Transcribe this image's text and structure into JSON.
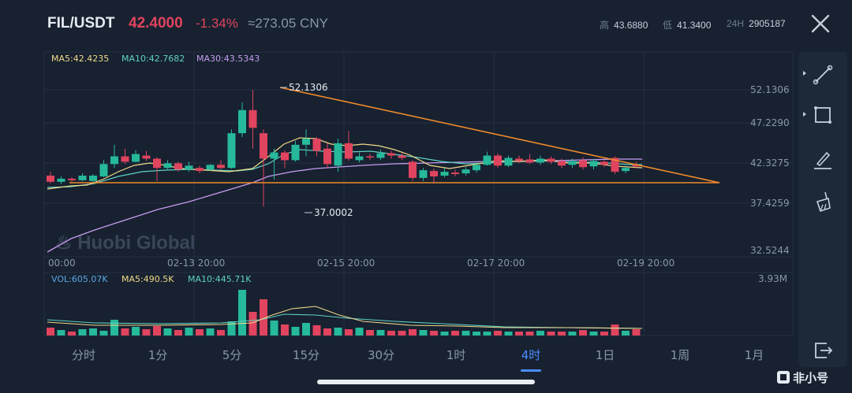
{
  "header": {
    "pair": "FIL/USDT",
    "price": "42.4000",
    "change": "-1.34%",
    "cny": "≈273.05 CNY",
    "high_label": "高",
    "high_value": "43.6880",
    "low_label": "低",
    "low_value": "41.3400",
    "vol24_label": "24H",
    "vol24_value": "2905187"
  },
  "main_chart": {
    "ma_labels": {
      "ma5": "MA5:42.4235",
      "ma10": "MA10:42.7682",
      "ma30": "MA30:43.5343"
    },
    "y_ticks": [
      "52.1306",
      "47.2290",
      "42.3275",
      "37.4259",
      "32.5244"
    ],
    "x_ticks": [
      "00:00",
      "02-13 20:00",
      "02-15 20:00",
      "02-17 20:00",
      "02-19 20:00"
    ],
    "max_label": "52.1306",
    "min_label": "37.0002",
    "watermark": "Huobi Global"
  },
  "volume_chart": {
    "vol_label": "VOL:605.07K",
    "ma5_label": "MA5:490.5K",
    "ma10_label": "MA10:445.71K",
    "max_tick": "3.93M"
  },
  "tabs": [
    {
      "label": "分时"
    },
    {
      "label": "1分"
    },
    {
      "label": "5分"
    },
    {
      "label": "15分"
    },
    {
      "label": "30分"
    },
    {
      "label": "1时"
    },
    {
      "label": "4时",
      "active": true
    },
    {
      "label": "1日"
    },
    {
      "label": "1周"
    },
    {
      "label": "1月"
    }
  ],
  "colors": {
    "up": "#26b99a",
    "down": "#e0445e",
    "ma5": "#f0d98a",
    "ma10": "#5fd1c4",
    "ma30": "#c79cf0",
    "trend": "#f08a2a",
    "accent": "#4a8dff"
  },
  "icons": [
    "close-icon",
    "trendline-tool-icon",
    "rectangle-tool-icon",
    "pen-tool-icon",
    "eraser-tool-icon",
    "exit-icon"
  ],
  "corner_brand": "非小号",
  "chart_data": {
    "type": "candlestick",
    "timeframe": "4h",
    "candles": [
      [
        41.0,
        40.2,
        41.5,
        40.0
      ],
      [
        40.2,
        40.6,
        40.9,
        39.9
      ],
      [
        40.6,
        40.4,
        40.8,
        40.2
      ],
      [
        40.4,
        41.0,
        41.3,
        40.3
      ],
      [
        40.3,
        41.0,
        41.2,
        40.1
      ],
      [
        40.9,
        42.5,
        43.0,
        40.8
      ],
      [
        42.5,
        43.5,
        45.0,
        42.0
      ],
      [
        43.5,
        42.8,
        44.5,
        42.5
      ],
      [
        42.8,
        43.8,
        44.3,
        42.7
      ],
      [
        43.6,
        43.2,
        44.2,
        42.9
      ],
      [
        43.2,
        42.0,
        43.4,
        40.3
      ],
      [
        42.0,
        42.6,
        43.0,
        41.8
      ],
      [
        42.6,
        41.8,
        42.8,
        41.5
      ],
      [
        41.8,
        42.3,
        42.8,
        41.5
      ],
      [
        42.0,
        41.6,
        42.3,
        41.3
      ],
      [
        41.8,
        42.4,
        42.5,
        41.6
      ],
      [
        42.4,
        42.0,
        43.0,
        41.8
      ],
      [
        42.0,
        46.5,
        47.0,
        41.9
      ],
      [
        46.5,
        49.5,
        50.5,
        46.0
      ],
      [
        49.5,
        47.2,
        52.13,
        44.5
      ],
      [
        46.5,
        43.2,
        47.0,
        37.0
      ],
      [
        43.2,
        44.0,
        44.5,
        40.5
      ],
      [
        44.0,
        43.0,
        44.3,
        42.0
      ],
      [
        43.0,
        45.0,
        45.5,
        42.8
      ],
      [
        45.0,
        45.8,
        47.0,
        43.5
      ],
      [
        45.8,
        44.2,
        46.0,
        43.5
      ],
      [
        44.5,
        42.5,
        45.2,
        42.0
      ],
      [
        42.3,
        45.2,
        45.8,
        41.5
      ],
      [
        45.2,
        43.2,
        46.8,
        42.9
      ],
      [
        43.0,
        43.5,
        44.0,
        42.7
      ],
      [
        43.5,
        43.4,
        43.8,
        43.0
      ],
      [
        43.3,
        43.9,
        44.4,
        43.0
      ],
      [
        43.9,
        43.6,
        44.2,
        43.2
      ],
      [
        43.6,
        43.3,
        43.9,
        43.0
      ],
      [
        42.8,
        40.7,
        43.0,
        40.3
      ],
      [
        40.7,
        41.7,
        42.0,
        40.3
      ],
      [
        41.6,
        40.9,
        41.9,
        40.0
      ],
      [
        41.0,
        41.5,
        42.0,
        40.8
      ],
      [
        41.4,
        41.2,
        41.8,
        40.9
      ],
      [
        41.3,
        41.8,
        42.1,
        41.0
      ],
      [
        41.7,
        42.4,
        42.7,
        41.4
      ],
      [
        42.4,
        43.6,
        44.1,
        42.3
      ],
      [
        43.6,
        42.3,
        43.9,
        42.0
      ],
      [
        42.3,
        43.3,
        43.6,
        42.1
      ],
      [
        43.2,
        42.9,
        43.6,
        42.6
      ],
      [
        43.1,
        42.7,
        43.8,
        42.5
      ],
      [
        42.7,
        43.2,
        43.6,
        42.4
      ],
      [
        43.2,
        42.8,
        43.5,
        42.5
      ],
      [
        42.9,
        42.3,
        43.2,
        42.0
      ],
      [
        42.4,
        42.9,
        43.2,
        42.0
      ],
      [
        43.0,
        42.1,
        43.4,
        41.8
      ],
      [
        42.2,
        42.9,
        43.2,
        41.8
      ],
      [
        42.8,
        42.4,
        43.0,
        42.1
      ],
      [
        43.3,
        41.5,
        43.5,
        41.2
      ],
      [
        41.6,
        42.0,
        42.3,
        41.3
      ],
      [
        42.4,
        42.2,
        42.8,
        41.9
      ]
    ],
    "volume_scale_max": 3930000
  }
}
